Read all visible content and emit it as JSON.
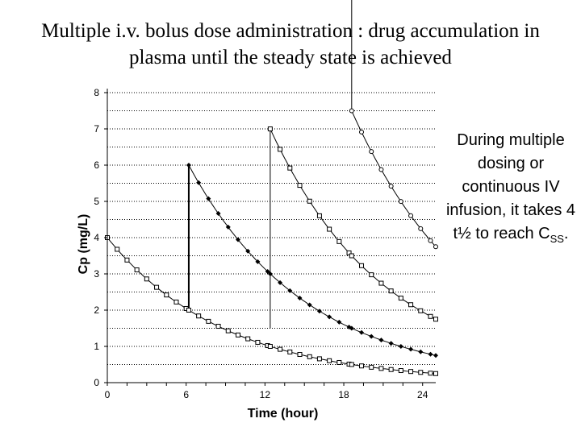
{
  "title": {
    "line1": "Multiple i.v. bolus dose administration : drug accumulation in",
    "line2": "plasma until the steady state is achieved"
  },
  "note": {
    "text": "During multiple dosing or continuous IV infusion, it takes 4 t½ to reach C",
    "subscript": "SS",
    "suffix": "."
  },
  "chart_data": {
    "type": "line",
    "xlabel": "Time (hour)",
    "ylabel": "Cp (mg/L)",
    "xlim": [
      0,
      25
    ],
    "ylim": [
      0,
      8
    ],
    "x_ticks": [
      0,
      6,
      12,
      18,
      24
    ],
    "y_ticks": [
      0,
      1,
      2,
      3,
      4,
      5,
      6,
      7,
      8
    ],
    "grid": true,
    "grid_step": 0.5,
    "legend": "none",
    "dosing_times": [
      6.2,
      12.4,
      18.6
    ],
    "series": [
      {
        "marker": "square",
        "x": [
          0,
          6.2,
          12.4,
          18.6,
          25
        ],
        "y": [
          4.0,
          2.0,
          1.0,
          0.5,
          0.25
        ]
      },
      {
        "marker": "diamond",
        "x": [
          6.2,
          12.4,
          18.6,
          25
        ],
        "y": [
          6.0,
          3.0,
          1.5,
          0.75
        ]
      },
      {
        "marker": "square",
        "x": [
          12.4,
          18.6,
          25
        ],
        "y": [
          7.0,
          3.5,
          1.75
        ]
      },
      {
        "marker": "circle",
        "x": [
          18.6,
          25
        ],
        "y": [
          7.5,
          3.75
        ]
      }
    ]
  }
}
